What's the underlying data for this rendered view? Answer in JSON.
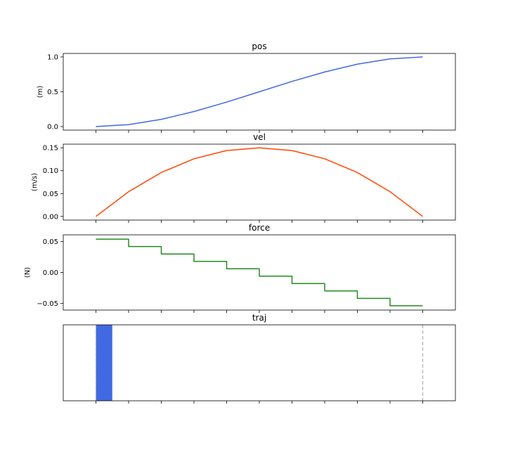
{
  "chart_data": [
    {
      "type": "line",
      "title": "pos",
      "ylabel": "(m)",
      "ylim": [
        -0.05,
        1.05
      ],
      "yticks": [
        0.0,
        0.5,
        1.0
      ],
      "ytick_labels": [
        "0.0",
        "0.5",
        "1.0"
      ],
      "xlim": [
        -0.1,
        1.1
      ],
      "xticks": [
        0,
        0.1,
        0.2,
        0.3,
        0.4,
        0.5,
        0.6,
        0.7,
        0.8,
        0.9,
        1.0
      ],
      "color": "#4169e1",
      "series": [
        {
          "x": [
            0,
            0.1,
            0.2,
            0.3,
            0.4,
            0.5,
            0.6,
            0.7,
            0.8,
            0.9,
            1.0
          ],
          "y": [
            0.0,
            0.028,
            0.104,
            0.216,
            0.352,
            0.5,
            0.648,
            0.784,
            0.896,
            0.972,
            1.0
          ]
        }
      ]
    },
    {
      "type": "line",
      "title": "vel",
      "ylabel": "(m/s)",
      "ylim": [
        -0.008,
        0.158
      ],
      "yticks": [
        0.0,
        0.05,
        0.1,
        0.15
      ],
      "ytick_labels": [
        "0.00",
        "0.05",
        "0.10",
        "0.15"
      ],
      "xlim": [
        -0.1,
        1.1
      ],
      "xticks": [
        0,
        0.1,
        0.2,
        0.3,
        0.4,
        0.5,
        0.6,
        0.7,
        0.8,
        0.9,
        1.0
      ],
      "color": "#ff4500",
      "series": [
        {
          "x": [
            0,
            0.1,
            0.2,
            0.3,
            0.4,
            0.5,
            0.6,
            0.7,
            0.8,
            0.9,
            1.0
          ],
          "y": [
            0.0,
            0.054,
            0.096,
            0.126,
            0.144,
            0.15,
            0.144,
            0.126,
            0.096,
            0.054,
            0.0
          ]
        }
      ]
    },
    {
      "type": "line",
      "title": "force",
      "ylabel": "(N)",
      "ylim": [
        -0.061,
        0.061
      ],
      "yticks": [
        -0.05,
        0.0,
        0.05
      ],
      "ytick_labels": [
        "−0.05",
        "0.00",
        "0.05"
      ],
      "xlim": [
        -0.1,
        1.1
      ],
      "xticks": [
        0,
        0.1,
        0.2,
        0.3,
        0.4,
        0.5,
        0.6,
        0.7,
        0.8,
        0.9,
        1.0
      ],
      "color": "#228b22",
      "step": true,
      "series": [
        {
          "x": [
            0,
            0.1,
            0.2,
            0.3,
            0.4,
            0.5,
            0.6,
            0.7,
            0.8,
            0.9,
            1.0
          ],
          "y": [
            0.054,
            0.042,
            0.03,
            0.018,
            0.006,
            -0.006,
            -0.018,
            -0.03,
            -0.042,
            -0.054,
            -0.054
          ]
        }
      ]
    },
    {
      "type": "bar",
      "title": "traj",
      "ylabel": "",
      "xlim": [
        -0.1,
        1.1
      ],
      "xticks": [
        0,
        0.1,
        0.2,
        0.3,
        0.4,
        0.5,
        0.6,
        0.7,
        0.8,
        0.9,
        1.0
      ],
      "color": "#4169e1",
      "block": {
        "x_start": 0.0,
        "x_end": 0.05
      },
      "marker_lines": [
        0.0,
        1.0
      ],
      "marker_color": "#b0b0b0"
    }
  ]
}
